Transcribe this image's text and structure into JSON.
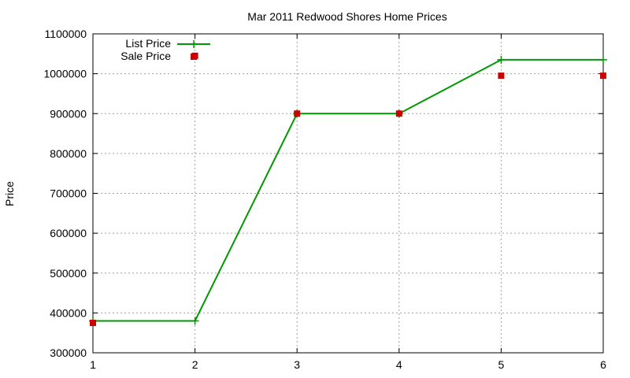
{
  "chart_data": {
    "type": "line",
    "title": "Mar 2011 Redwood Shores Home Prices",
    "xlabel": "",
    "ylabel": "Price",
    "x": [
      1,
      2,
      3,
      4,
      5,
      6
    ],
    "xlim": [
      1,
      6
    ],
    "ylim": [
      300000,
      1100000
    ],
    "xticks": [
      "1",
      "2",
      "3",
      "4",
      "5",
      "6"
    ],
    "yticks": [
      "300000",
      "400000",
      "500000",
      "600000",
      "700000",
      "800000",
      "900000",
      "1000000",
      "1100000"
    ],
    "grid": true,
    "legend_position": "top-left",
    "series": [
      {
        "name": "List Price",
        "style": "line-with-plus-markers",
        "color": "#009900",
        "values": [
          380000,
          380000,
          900000,
          900000,
          1035000,
          1035000
        ]
      },
      {
        "name": "Sale Price",
        "style": "square-markers",
        "color": "#cc0000",
        "values": [
          375000,
          1045000,
          900000,
          900000,
          995000,
          995000
        ]
      }
    ]
  }
}
